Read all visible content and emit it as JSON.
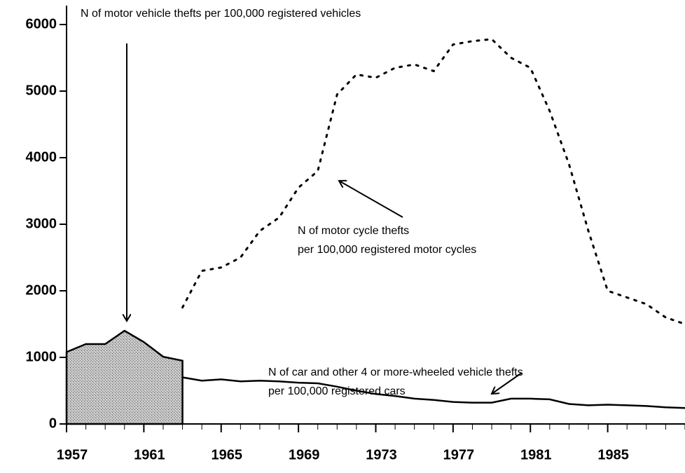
{
  "chart_data": {
    "type": "line",
    "series": [
      {
        "x": [
          1957,
          1958,
          1959,
          1960,
          1961,
          1962,
          1963
        ],
        "values": [
          1080,
          1200,
          1200,
          1400,
          1230,
          1010,
          950
        ],
        "style": "area",
        "color": "#b8b8b8"
      },
      {
        "x": [
          1963,
          1964,
          1965,
          1966,
          1967,
          1968,
          1969,
          1970,
          1971,
          1972,
          1973,
          1974,
          1975,
          1976,
          1977,
          1978,
          1979,
          1980,
          1981,
          1982,
          1983,
          1984,
          1985,
          1986,
          1987,
          1988,
          1989
        ],
        "values": [
          1750,
          2300,
          2350,
          2500,
          2900,
          3100,
          3550,
          3800,
          4950,
          5250,
          5200,
          5350,
          5400,
          5300,
          5700,
          5750,
          5780,
          5500,
          5350,
          4700,
          3900,
          2900,
          2000,
          1900,
          1800,
          1600,
          1500
        ],
        "style": "dotted",
        "color": "#000000"
      },
      {
        "x": [
          1963,
          1964,
          1965,
          1966,
          1967,
          1968,
          1969,
          1970,
          1971,
          1972,
          1973,
          1974,
          1975,
          1976,
          1977,
          1978,
          1979,
          1980,
          1981,
          1982,
          1983,
          1984,
          1985,
          1986,
          1987,
          1988,
          1989
        ],
        "values": [
          700,
          650,
          670,
          640,
          650,
          640,
          620,
          610,
          560,
          500,
          450,
          420,
          380,
          360,
          330,
          320,
          320,
          380,
          380,
          370,
          300,
          280,
          290,
          280,
          270,
          250,
          240
        ],
        "style": "solid",
        "color": "#000000"
      }
    ],
    "annotations": [
      [
        "N of motor vehicle thefts per 100,000 registered vehicles"
      ],
      [
        "N of motor cycle thefts",
        "per 100,000 registered motor cycles"
      ],
      [
        "N of car and other 4 or more-wheeled vehicle thefts",
        "per 100,000 registered cars"
      ]
    ],
    "xlim": [
      1957,
      1989
    ],
    "xticks": [
      1957,
      1961,
      1965,
      1969,
      1973,
      1977,
      1981,
      1985
    ],
    "ylim": [
      0,
      6000
    ],
    "yticks": [
      0,
      1000,
      2000,
      3000,
      4000,
      5000,
      6000
    ]
  }
}
